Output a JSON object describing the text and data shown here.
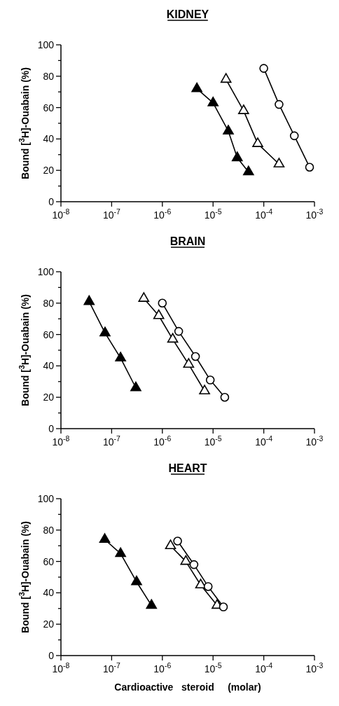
{
  "chart_data": [
    {
      "type": "line",
      "title": "KIDNEY",
      "ylabel": "Bound [$^{3}$H]-Ouabain (%)",
      "log": "x",
      "xlim": [
        1e-08,
        0.001
      ],
      "xticks": [
        {
          "value": 1e-08,
          "label": "10$^{-8}$"
        },
        {
          "value": 1e-07,
          "label": "10$^{-7}$"
        },
        {
          "value": 1e-06,
          "label": "10$^{-6}$"
        },
        {
          "value": 1e-05,
          "label": "10$^{-5}$"
        },
        {
          "value": 0.0001,
          "label": "10$^{-4}$"
        },
        {
          "value": 0.001,
          "label": "10$^{-3}$"
        }
      ],
      "ylim": [
        0,
        100
      ],
      "yticks": [
        0,
        {
          "value": 10,
          "label": null
        },
        20,
        {
          "value": 30,
          "label": null
        },
        40,
        {
          "value": 50,
          "label": null
        },
        60,
        {
          "value": 70,
          "label": null
        },
        80,
        {
          "value": 90,
          "label": null
        },
        100
      ],
      "grid": false,
      "line_style": "solid",
      "series": [
        {
          "color": "#000000",
          "marker": "triangle",
          "x": [
            4.8e-06,
            1e-05,
            2e-05,
            3e-05,
            5e-05
          ],
          "values": [
            72,
            63,
            45,
            28,
            19
          ]
        },
        {
          "color": "#ffffff",
          "marker": "triangle",
          "x": [
            1.8e-05,
            4e-05,
            7.6e-05,
            0.0002
          ],
          "values": [
            78,
            58,
            37,
            24
          ]
        },
        {
          "color": "#ffffff",
          "marker": "circle",
          "x": [
            0.0001,
            0.0002,
            0.0004,
            0.0008
          ],
          "values": [
            85,
            62,
            42,
            22
          ]
        }
      ]
    },
    {
      "type": "line",
      "title": "BRAIN",
      "ylabel": "Bound [$^{3}$H]-Ouabain (%)",
      "log": "x",
      "xlim": [
        1e-08,
        0.001
      ],
      "xticks": [
        {
          "value": 1e-08,
          "label": "10$^{-8}$"
        },
        {
          "value": 1e-07,
          "label": "10$^{-7}$"
        },
        {
          "value": 1e-06,
          "label": "10$^{-6}$"
        },
        {
          "value": 1e-05,
          "label": "10$^{-5}$"
        },
        {
          "value": 0.0001,
          "label": "10$^{-4}$"
        },
        {
          "value": 0.001,
          "label": "10$^{-3}$"
        }
      ],
      "ylim": [
        0,
        100
      ],
      "yticks": [
        0,
        {
          "value": 10,
          "label": null
        },
        20,
        {
          "value": 30,
          "label": null
        },
        40,
        {
          "value": 50,
          "label": null
        },
        60,
        {
          "value": 70,
          "label": null
        },
        80,
        {
          "value": 90,
          "label": null
        },
        100
      ],
      "grid": false,
      "line_style": "solid",
      "series": [
        {
          "color": "#000000",
          "marker": "triangle",
          "x": [
            3.6e-08,
            7.4e-08,
            1.5e-07,
            3e-07
          ],
          "values": [
            81,
            61,
            45,
            26
          ]
        },
        {
          "color": "#ffffff",
          "marker": "triangle",
          "x": [
            4.3e-07,
            8.5e-07,
            1.6e-06,
            3.3e-06,
            6.8e-06
          ],
          "values": [
            83,
            72,
            57,
            41,
            24
          ]
        },
        {
          "color": "#ffffff",
          "marker": "circle",
          "x": [
            1e-06,
            2.1e-06,
            4.5e-06,
            8.8e-06,
            1.7e-05
          ],
          "values": [
            80,
            62,
            46,
            31,
            20
          ]
        }
      ]
    },
    {
      "type": "line",
      "title": "HEART",
      "ylabel": "Bound [$^{3}$H]-Ouabain (%)",
      "xlabel": "Cardioactive   steroid     (molar)",
      "log": "x",
      "xlim": [
        1e-08,
        0.001
      ],
      "xticks": [
        {
          "value": 1e-08,
          "label": "10$^{-8}$"
        },
        {
          "value": 1e-07,
          "label": "10$^{-7}$"
        },
        {
          "value": 1e-06,
          "label": "10$^{-6}$"
        },
        {
          "value": 1e-05,
          "label": "10$^{-5}$"
        },
        {
          "value": 0.0001,
          "label": "10$^{-4}$"
        },
        {
          "value": 0.001,
          "label": "10$^{-3}$"
        }
      ],
      "ylim": [
        0,
        100
      ],
      "yticks": [
        0,
        {
          "value": 10,
          "label": null
        },
        20,
        {
          "value": 30,
          "label": null
        },
        40,
        {
          "value": 50,
          "label": null
        },
        60,
        {
          "value": 70,
          "label": null
        },
        80,
        {
          "value": 90,
          "label": null
        },
        100
      ],
      "grid": false,
      "line_style": "solid",
      "series": [
        {
          "color": "#000000",
          "marker": "triangle",
          "x": [
            7.3e-08,
            1.5e-07,
            3.1e-07,
            6.1e-07
          ],
          "values": [
            74,
            65,
            47,
            32
          ]
        },
        {
          "color": "#ffffff",
          "marker": "triangle",
          "x": [
            1.45e-06,
            2.9e-06,
            5.7e-06,
            1.2e-05
          ],
          "values": [
            70,
            60,
            45,
            32
          ]
        },
        {
          "color": "#ffffff",
          "marker": "circle",
          "x": [
            2e-06,
            4.2e-06,
            8e-06,
            1.6e-05
          ],
          "values": [
            73,
            58,
            44,
            31
          ]
        }
      ]
    }
  ]
}
